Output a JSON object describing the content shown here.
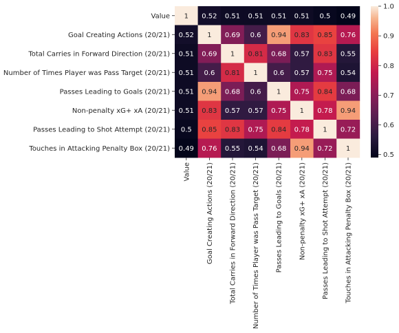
{
  "chart_data": {
    "type": "heatmap",
    "title": "",
    "xlabel": "",
    "ylabel": "",
    "row_labels": [
      "Value",
      "Goal Creating Actions (20/21)",
      "Total Carries in Forward Direction (20/21)",
      "Number of Times Player was Pass Target (20/21)",
      "Passes Leading to Goals (20/21)",
      "Non-penalty xG+ xA (20/21)",
      "Passes Leading to Shot Attempt (20/21)",
      "Touches in Attacking Penalty Box (20/21)"
    ],
    "col_labels": [
      "Value",
      "Goal Creating Actions (20/21)",
      "Total Carries in Forward Direction (20/21)",
      "Number of Times Player was Pass Target (20/21)",
      "Passes Leading to Goals (20/21)",
      "Non-penalty xG+ xA (20/21)",
      "Passes Leading to Shot Attempt (20/21)",
      "Touches in Attacking Penalty Box (20/21)"
    ],
    "values": [
      [
        1,
        0.52,
        0.51,
        0.51,
        0.51,
        0.51,
        0.5,
        0.49
      ],
      [
        0.52,
        1,
        0.69,
        0.6,
        0.94,
        0.83,
        0.85,
        0.76
      ],
      [
        0.51,
        0.69,
        1,
        0.81,
        0.68,
        0.57,
        0.83,
        0.55
      ],
      [
        0.51,
        0.6,
        0.81,
        1,
        0.6,
        0.57,
        0.75,
        0.54
      ],
      [
        0.51,
        0.94,
        0.68,
        0.6,
        1,
        0.75,
        0.84,
        0.68
      ],
      [
        0.51,
        0.83,
        0.57,
        0.57,
        0.75,
        1,
        0.78,
        0.94
      ],
      [
        0.5,
        0.85,
        0.83,
        0.75,
        0.84,
        0.78,
        1,
        0.72
      ],
      [
        0.49,
        0.76,
        0.55,
        0.54,
        0.68,
        0.94,
        0.72,
        1
      ]
    ],
    "colorbar": {
      "colormap": "rocket",
      "range": [
        0.49,
        1.0
      ],
      "ticks": [
        "0.5",
        "0.6",
        "0.7",
        "0.8",
        "0.9",
        "1.0"
      ],
      "tick_values": [
        0.5,
        0.6,
        0.7,
        0.8,
        0.9,
        1.0
      ]
    },
    "annotations": true,
    "grid": false,
    "legend": "colorbar-right"
  }
}
